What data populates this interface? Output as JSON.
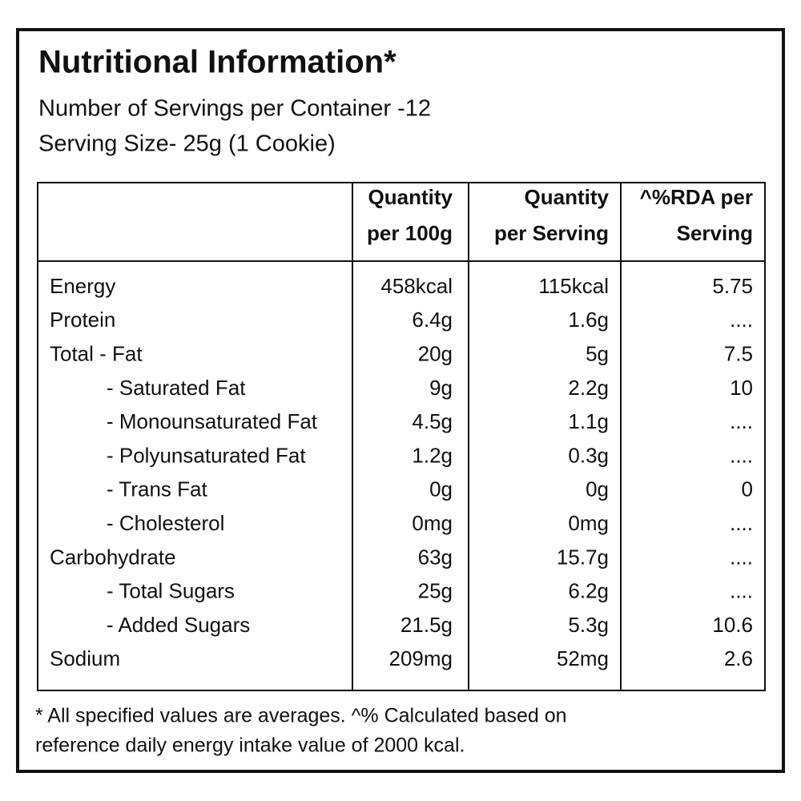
{
  "header": {
    "title": "Nutritional Information*",
    "servings": "Number of Servings per Container -12",
    "serving_size": "Serving Size- 25g (1 Cookie)"
  },
  "table": {
    "columns": [
      [
        "Quantity",
        "per 100g"
      ],
      [
        "Quantity",
        "per Serving"
      ],
      [
        "^%RDA per",
        "Serving"
      ]
    ],
    "rows": [
      [
        "Energy",
        "458kcal",
        "115kcal",
        "5.75"
      ],
      [
        "Protein",
        "6.4g",
        "1.6g",
        "...."
      ],
      [
        "Total - Fat",
        "20g",
        "5g",
        "7.5"
      ],
      [
        "- Saturated Fat",
        "9g",
        "2.2g",
        "10"
      ],
      [
        "- Monounsaturated Fat",
        "4.5g",
        "1.1g",
        "...."
      ],
      [
        "- Polyunsaturated Fat",
        "1.2g",
        "0.3g",
        "...."
      ],
      [
        "- Trans Fat",
        "0g",
        "0g",
        "0"
      ],
      [
        "- Cholesterol",
        "0mg",
        "0mg",
        "...."
      ],
      [
        "Carbohydrate",
        "63g",
        "15.7g",
        "...."
      ],
      [
        "- Total Sugars",
        "25g",
        "6.2g",
        "...."
      ],
      [
        "- Added Sugars",
        "21.5g",
        "5.3g",
        "10.6"
      ],
      [
        "Sodium",
        "209mg",
        "52mg",
        "2.6"
      ]
    ]
  },
  "footnote": [
    "* All specified values are averages. ^% Calculated based on",
    "reference daily energy intake value of 2000 kcal."
  ]
}
